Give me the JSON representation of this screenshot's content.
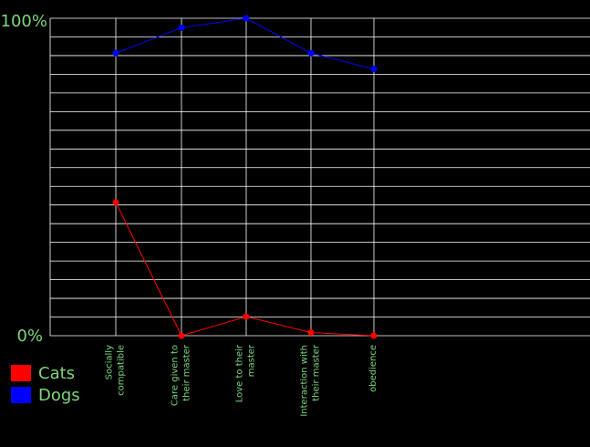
{
  "chart_data": {
    "type": "line",
    "categories": [
      "Socially compatible",
      "Care given to their master",
      "Love to their master",
      "Interaction with their master",
      "obedience"
    ],
    "series": [
      {
        "name": "Cats",
        "color": "#ff0000",
        "values": [
          42,
          0,
          6,
          1,
          0
        ]
      },
      {
        "name": "Dogs",
        "color": "#0000ff",
        "values": [
          89,
          97,
          100,
          89,
          84
        ]
      }
    ],
    "y_tick_labels": [
      "100%",
      "0%"
    ],
    "ylim": [
      0,
      100
    ],
    "grid": true,
    "legend_position": "bottom-left",
    "colors": {
      "background": "#000000",
      "grid": "#ffffff",
      "text": "#7cd67c"
    }
  }
}
